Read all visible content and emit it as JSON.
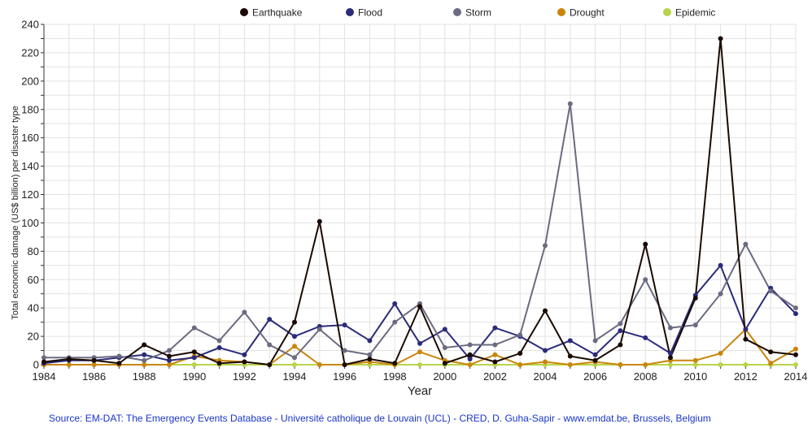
{
  "chart_data": {
    "type": "line",
    "x": [
      1984,
      1985,
      1986,
      1987,
      1988,
      1989,
      1990,
      1991,
      1992,
      1993,
      1994,
      1995,
      1996,
      1997,
      1998,
      1999,
      2000,
      2001,
      2002,
      2003,
      2004,
      2005,
      2006,
      2007,
      2008,
      2009,
      2010,
      2011,
      2012,
      2013,
      2014
    ],
    "series": [
      {
        "name": "Earthquake",
        "color": "#1a0a00",
        "values": [
          2,
          4,
          3,
          1,
          14,
          6,
          9,
          1,
          2,
          0,
          30,
          101,
          0,
          4,
          1,
          41,
          1,
          7,
          2,
          8,
          38,
          6,
          3,
          14,
          85,
          5,
          47,
          230,
          18,
          9,
          7
        ]
      },
      {
        "name": "Flood",
        "color": "#2b2b7a",
        "values": [
          1,
          3,
          3,
          5,
          7,
          3,
          5,
          12,
          7,
          32,
          20,
          27,
          28,
          17,
          43,
          15,
          25,
          4,
          26,
          20,
          10,
          17,
          7,
          24,
          19,
          8,
          49,
          70,
          25,
          54,
          36
        ]
      },
      {
        "name": "Storm",
        "color": "#6b6b82",
        "values": [
          5,
          5,
          5,
          6,
          3,
          10,
          26,
          17,
          37,
          14,
          5,
          25,
          10,
          7,
          30,
          43,
          12,
          14,
          14,
          21,
          84,
          184,
          17,
          29,
          60,
          26,
          28,
          50,
          85,
          52,
          40
        ]
      },
      {
        "name": "Drought",
        "color": "#c8860a",
        "values": [
          0,
          0,
          0,
          0,
          0,
          0,
          6,
          3,
          2,
          0,
          13,
          0,
          0,
          2,
          0,
          9,
          3,
          0,
          7,
          0,
          2,
          0,
          2,
          0,
          0,
          3,
          3,
          8,
          25,
          1,
          11
        ]
      },
      {
        "name": "Epidemic",
        "color": "#b8d44a",
        "values": [
          0,
          0,
          0,
          0,
          0,
          0,
          0,
          0,
          0,
          0,
          0,
          0,
          0,
          0,
          0,
          0,
          0,
          0,
          0,
          0,
          0,
          0,
          0,
          0,
          0,
          0,
          0,
          0,
          0,
          0,
          0
        ]
      }
    ],
    "xticks": [
      "1984",
      "1986",
      "1988",
      "1990",
      "1992",
      "1994",
      "1996",
      "1998",
      "2000",
      "2002",
      "2004",
      "2006",
      "2008",
      "2010",
      "2012",
      "2014"
    ],
    "yticks": [
      "0",
      "20",
      "40",
      "60",
      "80",
      "100",
      "120",
      "140",
      "160",
      "180",
      "200",
      "220",
      "240"
    ],
    "xlabel": "Year",
    "ylabel": "Total economic damage (US$ billion) per  disaster type",
    "xlim": [
      1984,
      2014
    ],
    "ylim": [
      0,
      240
    ],
    "grid": true,
    "legend_position": "top"
  },
  "source": "Source: EM-DAT: The Emergency Events Database - Université catholique de Louvain (UCL) - CRED, D. Guha-Sapir - www.emdat.be, Brussels, Belgium"
}
